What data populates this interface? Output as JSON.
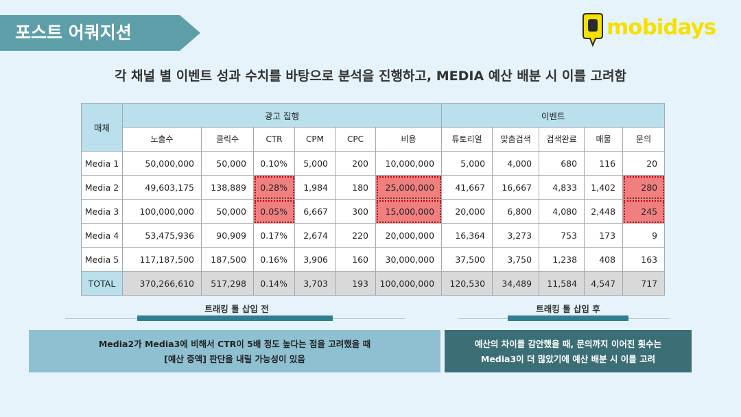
{
  "title": "포스트 어쿼지션",
  "logo_text": "mobidays",
  "headline": "각 채널 별 이벤트 성과 수치를 바탕으로 분석을 진행하고, MEDIA 예산 배분 시 이를 고려함",
  "table": {
    "media_header": "매체",
    "group_ad": "광고 집행",
    "group_event": "이벤트",
    "columns": [
      "노출수",
      "클릭수",
      "CTR",
      "CPM",
      "CPC",
      "비용",
      "튜토리얼",
      "맞춤검색",
      "검색완료",
      "매물",
      "문의"
    ],
    "rows": [
      {
        "media": "Media 1",
        "values": [
          "50,000,000",
          "50,000",
          "0.10%",
          "5,000",
          "200",
          "10,000,000",
          "5,000",
          "4,000",
          "680",
          "116",
          "20"
        ]
      },
      {
        "media": "Media 2",
        "values": [
          "49,603,175",
          "138,889",
          "0.28%",
          "1,984",
          "180",
          "25,000,000",
          "41,667",
          "16,667",
          "4,833",
          "1,402",
          "280"
        ]
      },
      {
        "media": "Media 3",
        "values": [
          "100,000,000",
          "50,000",
          "0.05%",
          "6,667",
          "300",
          "15,000,000",
          "20,000",
          "6,800",
          "4,080",
          "2,448",
          "245"
        ]
      },
      {
        "media": "Media 4",
        "values": [
          "53,475,936",
          "90,909",
          "0.17%",
          "2,674",
          "220",
          "20,000,000",
          "16,364",
          "3,273",
          "753",
          "173",
          "9"
        ]
      },
      {
        "media": "Media 5",
        "values": [
          "117,187,500",
          "187,500",
          "0.16%",
          "3,906",
          "160",
          "30,000,000",
          "37,500",
          "3,750",
          "1,238",
          "408",
          "163"
        ]
      }
    ],
    "total": {
      "media": "TOTAL",
      "values": [
        "370,266,610",
        "517,298",
        "0.14%",
        "3,703",
        "193",
        "100,000,000",
        "120,530",
        "34,489",
        "11,584",
        "4,547",
        "717"
      ]
    },
    "highlight_color": "#f08080"
  },
  "before_label": "트래킹 툴 삽입 전",
  "after_label": "트래킹 툴 삽입 후",
  "before_box": {
    "line1": "Media2가 Media3에 비해서 CTR이 5배 정도 높다는 점을 고려했을 때",
    "line2": "[예산 증액] 판단을 내릴 가능성이 있음"
  },
  "after_box": {
    "line1": "예산의 차이를 감안했을 때, 문의까지 이어진 횟수는",
    "line2": "Media3이 더 많았기에 예산 배분 시 이를 고려"
  },
  "colors": {
    "banner": "#5e9ea8",
    "accent_bar": "#2f7f91",
    "logo": "#f5e100",
    "box_right": "#3c6e76",
    "box_left": "#8fc0d2"
  }
}
